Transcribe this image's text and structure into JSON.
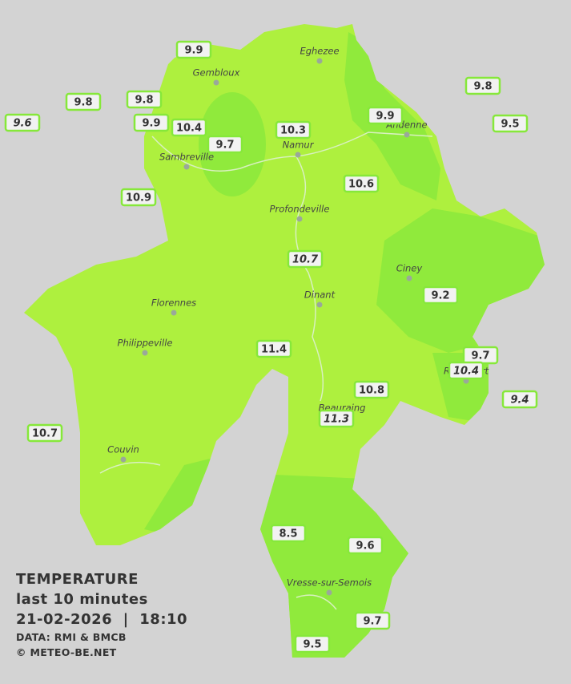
{
  "header": {
    "title": "TEMPERATURE",
    "subtitle": "last 10 minutes",
    "timestamp": "21-02-2026  |  18:10",
    "source": "DATA: RMI & BMCB",
    "copyright": "© METEO-BE.NET"
  },
  "cities": [
    "Eghezee",
    "Gembloux",
    "Andenne",
    "Namur",
    "Sambreville",
    "Profondeville",
    "Ciney",
    "Dinant",
    "Florennes",
    "Philippeville",
    "Rochefort",
    "Beauraing",
    "Couvin",
    "Vresse-sur-Semois"
  ],
  "stations": [
    "9.9",
    "9.8",
    "9.8",
    "9.6",
    "9.9",
    "10.4",
    "10.3",
    "9.7",
    "9.9",
    "9.8",
    "9.5",
    "10.9",
    "10.6",
    "10.7",
    "9.2",
    "11.4",
    "9.7",
    "10.4",
    "9.4",
    "10.8",
    "11.3",
    "10.7",
    "8.5",
    "9.6",
    "9.7",
    "9.5"
  ]
}
